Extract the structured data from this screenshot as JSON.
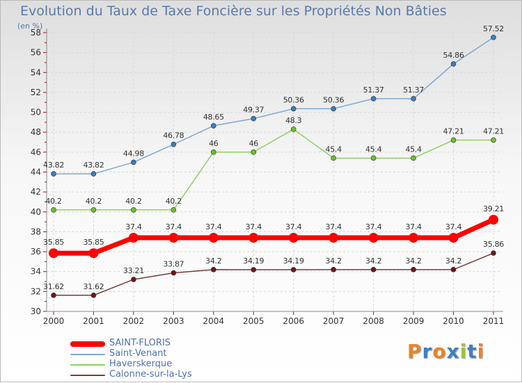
{
  "title": "Evolution du Taux de Taxe Foncière sur les Propriétés Non Bâties",
  "unit_label": "(en %)",
  "logo": {
    "text": "Proxiti",
    "colors": [
      "#e8842c",
      "#3f7fc2",
      "#e8842c",
      "#3f7fc2",
      "#9ac53c",
      "#3f7fc2",
      "#e8842c"
    ]
  },
  "chart_data": {
    "type": "line",
    "title": "Evolution du Taux de Taxe Foncière sur les Propriétés Non Bâties",
    "ylabel": "(en %)",
    "x": [
      "2000",
      "2001",
      "2002",
      "2003",
      "2004",
      "2005",
      "2006",
      "2007",
      "2008",
      "2009",
      "2010",
      "2011"
    ],
    "ylim": [
      30,
      58
    ],
    "yticks": [
      30,
      32,
      34,
      36,
      38,
      40,
      42,
      44,
      46,
      48,
      50,
      52,
      54,
      56,
      58
    ],
    "grid": true,
    "legend_position": "bottom-left",
    "series": [
      {
        "name": "SAINT-FLORIS",
        "color": "#ff0000",
        "marker": "#ff0000",
        "width": 7,
        "radius": 7,
        "values": [
          35.85,
          35.85,
          37.4,
          37.4,
          37.4,
          37.4,
          37.4,
          37.4,
          37.4,
          37.4,
          37.4,
          39.21
        ],
        "labels": [
          "35.85",
          "35.85",
          "37.4",
          "37.4",
          "37.4",
          "37.4",
          "37.4",
          "37.4",
          "37.4",
          "37.4",
          "37.4",
          "39.21"
        ]
      },
      {
        "name": "Saint-Venant",
        "color": "#7fa8cf",
        "marker": "#3a7cc0",
        "width": 1.5,
        "radius": 3.5,
        "values": [
          43.82,
          43.82,
          44.98,
          46.78,
          48.65,
          49.37,
          50.36,
          50.36,
          51.37,
          51.37,
          54.86,
          57.52
        ],
        "labels": [
          "43.82",
          "43.82",
          "44.98",
          "46.78",
          "48.65",
          "49.37",
          "50.36",
          "50.36",
          "51.37",
          "51.37",
          "54.86",
          "57.52"
        ]
      },
      {
        "name": "Haverskerque",
        "color": "#8fd060",
        "marker": "#6abf30",
        "width": 1.5,
        "radius": 3.5,
        "values": [
          40.2,
          40.2,
          40.2,
          40.2,
          46,
          46,
          48.3,
          45.4,
          45.4,
          45.4,
          47.21,
          47.21
        ],
        "labels": [
          "40.2",
          "40.2",
          "40.2",
          "40.2",
          "46",
          "46",
          "48.3",
          "45.4",
          "45.4",
          "45.4",
          "47.21",
          "47.21"
        ]
      },
      {
        "name": "Calonne-sur-la-Lys",
        "color": "#7a3a3a",
        "marker": "#6a1818",
        "width": 1.5,
        "radius": 3.5,
        "values": [
          31.62,
          31.62,
          33.21,
          33.87,
          34.2,
          34.19,
          34.19,
          34.2,
          34.2,
          34.2,
          34.2,
          35.86
        ],
        "labels": [
          "31.62",
          "31.62",
          "33.21",
          "33.87",
          "34.2",
          "34.19",
          "34.19",
          "34.2",
          "34.2",
          "34.2",
          "34.2",
          "35.86"
        ]
      }
    ]
  }
}
